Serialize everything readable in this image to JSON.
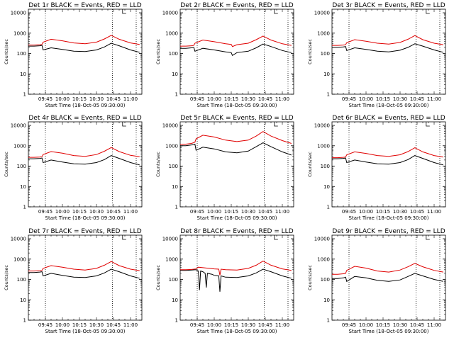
{
  "chart_data": [
    {
      "type": "line",
      "title": "Det 1r BLACK = Events, RED = LLD",
      "xlabel": "Start Time (18-Oct-05 09:30:00)",
      "ylabel": "Counts/sec",
      "yscale": "log",
      "ylim": [
        1,
        15000
      ],
      "xlim": [
        "09:30",
        "11:10"
      ],
      "x_ticks": [
        "09:45",
        "10:00",
        "10:15",
        "10:30",
        "10:45",
        "11:00"
      ],
      "y_ticks": [
        "1",
        "10",
        "100",
        "1000",
        "10000"
      ],
      "vlines": [
        "09:45",
        "10:44",
        "11:05"
      ],
      "grid": false,
      "legend": "none",
      "series": [
        {
          "color": "#000000",
          "x": [
            "09:30",
            "09:35",
            "09:40",
            "09:42",
            "09:43",
            "09:50",
            "10:00",
            "10:10",
            "10:20",
            "10:30",
            "10:37",
            "10:43",
            "10:50",
            "11:00",
            "11:08"
          ],
          "y": [
            230,
            230,
            240,
            250,
            150,
            190,
            160,
            130,
            125,
            150,
            210,
            320,
            240,
            150,
            115
          ]
        },
        {
          "color": "#e00000",
          "x": [
            "09:30",
            "09:35",
            "09:40",
            "09:42",
            "09:43",
            "09:50",
            "10:00",
            "10:10",
            "10:20",
            "10:30",
            "10:37",
            "10:43",
            "10:50",
            "11:00",
            "11:08"
          ],
          "y": [
            260,
            260,
            270,
            280,
            360,
            500,
            420,
            330,
            300,
            360,
            520,
            780,
            500,
            330,
            280
          ]
        }
      ]
    },
    {
      "type": "line",
      "title": "Det 2r BLACK = Events, RED = LLD",
      "xlabel": "Start Time (18-Oct-05 09:30:00)",
      "ylabel": "Counts/sec",
      "yscale": "log",
      "ylim": [
        1,
        15000
      ],
      "xlim": [
        "09:30",
        "11:10"
      ],
      "x_ticks": [
        "09:45",
        "10:00",
        "10:15",
        "10:30",
        "10:45",
        "11:00"
      ],
      "y_ticks": [
        "1",
        "10",
        "100",
        "1000",
        "10000"
      ],
      "vlines": [
        "09:45",
        "10:44",
        "11:05"
      ],
      "grid": false,
      "legend": "none",
      "series": [
        {
          "color": "#000000",
          "x": [
            "09:30",
            "09:35",
            "09:40",
            "09:42",
            "09:43",
            "09:50",
            "10:00",
            "10:10",
            "10:15",
            "10:16",
            "10:20",
            "10:30",
            "10:37",
            "10:43",
            "10:50",
            "11:00",
            "11:08"
          ],
          "y": [
            180,
            180,
            190,
            200,
            130,
            180,
            150,
            120,
            110,
            80,
            110,
            130,
            190,
            290,
            220,
            140,
            110
          ]
        },
        {
          "color": "#e00000",
          "x": [
            "09:30",
            "09:35",
            "09:40",
            "09:42",
            "09:43",
            "09:50",
            "10:00",
            "10:10",
            "10:15",
            "10:16",
            "10:20",
            "10:30",
            "10:37",
            "10:43",
            "10:50",
            "11:00",
            "11:08"
          ],
          "y": [
            230,
            230,
            240,
            250,
            320,
            460,
            380,
            300,
            280,
            220,
            270,
            320,
            480,
            720,
            460,
            300,
            250
          ]
        }
      ]
    },
    {
      "type": "line",
      "title": "Det 3r BLACK = Events, RED = LLD",
      "xlabel": "Start Time (18-Oct-05 09:30:00)",
      "ylabel": "Counts/sec",
      "yscale": "log",
      "ylim": [
        1,
        15000
      ],
      "xlim": [
        "09:30",
        "11:10"
      ],
      "x_ticks": [
        "09:45",
        "10:00",
        "10:15",
        "10:30",
        "10:45",
        "11:00"
      ],
      "y_ticks": [
        "1",
        "10",
        "100",
        "1000",
        "10000"
      ],
      "vlines": [
        "09:45",
        "10:44",
        "11:05"
      ],
      "grid": false,
      "legend": "none",
      "series": [
        {
          "color": "#000000",
          "x": [
            "09:30",
            "09:35",
            "09:40",
            "09:42",
            "09:43",
            "09:50",
            "10:00",
            "10:10",
            "10:20",
            "10:30",
            "10:37",
            "10:43",
            "10:50",
            "11:00",
            "11:08"
          ],
          "y": [
            200,
            200,
            210,
            220,
            140,
            190,
            160,
            130,
            120,
            145,
            200,
            300,
            230,
            150,
            115
          ]
        },
        {
          "color": "#e00000",
          "x": [
            "09:30",
            "09:35",
            "09:40",
            "09:42",
            "09:43",
            "09:50",
            "10:00",
            "10:10",
            "10:20",
            "10:30",
            "10:37",
            "10:43",
            "10:50",
            "11:00",
            "11:08"
          ],
          "y": [
            250,
            250,
            260,
            270,
            340,
            480,
            400,
            320,
            290,
            350,
            500,
            760,
            480,
            320,
            270
          ]
        }
      ]
    },
    {
      "type": "line",
      "title": "Det 4r BLACK = Events, RED = LLD",
      "xlabel": "Start Time (18-Oct-05 09:30:00)",
      "ylabel": "Counts/sec",
      "yscale": "log",
      "ylim": [
        1,
        15000
      ],
      "xlim": [
        "09:30",
        "11:10"
      ],
      "x_ticks": [
        "09:45",
        "10:00",
        "10:15",
        "10:30",
        "10:45",
        "11:00"
      ],
      "y_ticks": [
        "1",
        "10",
        "100",
        "1000",
        "10000"
      ],
      "vlines": [
        "09:45",
        "10:44",
        "11:05"
      ],
      "grid": false,
      "legend": "none",
      "series": [
        {
          "color": "#000000",
          "x": [
            "09:30",
            "09:35",
            "09:40",
            "09:42",
            "09:43",
            "09:50",
            "10:00",
            "10:10",
            "10:20",
            "10:30",
            "10:37",
            "10:43",
            "10:50",
            "11:00",
            "11:08"
          ],
          "y": [
            230,
            230,
            240,
            250,
            150,
            200,
            160,
            130,
            125,
            150,
            210,
            330,
            240,
            150,
            115
          ]
        },
        {
          "color": "#e00000",
          "x": [
            "09:30",
            "09:35",
            "09:40",
            "09:42",
            "09:43",
            "09:50",
            "10:00",
            "10:10",
            "10:20",
            "10:30",
            "10:37",
            "10:43",
            "10:50",
            "11:00",
            "11:08"
          ],
          "y": [
            270,
            270,
            280,
            290,
            370,
            520,
            430,
            330,
            300,
            370,
            540,
            820,
            520,
            340,
            290
          ]
        }
      ]
    },
    {
      "type": "line",
      "title": "Det 5r BLACK = Events, RED = LLD",
      "xlabel": "Start Time (18-Oct-05 09:30:00)",
      "ylabel": "Counts/sec",
      "yscale": "log",
      "ylim": [
        1,
        15000
      ],
      "xlim": [
        "09:30",
        "11:10"
      ],
      "x_ticks": [
        "09:45",
        "10:00",
        "10:15",
        "10:30",
        "10:45",
        "11:00"
      ],
      "y_ticks": [
        "1",
        "10",
        "100",
        "1000",
        "10000"
      ],
      "vlines": [
        "09:45",
        "10:44",
        "11:05"
      ],
      "grid": false,
      "legend": "none",
      "series": [
        {
          "color": "#000000",
          "x": [
            "09:30",
            "09:35",
            "09:40",
            "09:43",
            "09:44",
            "09:50",
            "10:00",
            "10:10",
            "10:20",
            "10:30",
            "10:37",
            "10:43",
            "10:50",
            "11:00",
            "11:08"
          ],
          "y": [
            1000,
            1000,
            1100,
            1200,
            600,
            850,
            700,
            500,
            450,
            550,
            900,
            1400,
            900,
            500,
            350
          ]
        },
        {
          "color": "#e00000",
          "x": [
            "09:30",
            "09:35",
            "09:40",
            "09:43",
            "09:44",
            "09:50",
            "10:00",
            "10:10",
            "10:20",
            "10:30",
            "10:37",
            "10:43",
            "10:50",
            "11:00",
            "11:08"
          ],
          "y": [
            1200,
            1200,
            1300,
            1500,
            2200,
            3300,
            2700,
            1900,
            1600,
            1900,
            3000,
            5000,
            3000,
            1800,
            1300
          ]
        }
      ]
    },
    {
      "type": "line",
      "title": "Det 6r BLACK = Events, RED = LLD",
      "xlabel": "Start Time (18-Oct-05 09:30:00)",
      "ylabel": "Counts/sec",
      "yscale": "log",
      "ylim": [
        1,
        15000
      ],
      "xlim": [
        "09:30",
        "11:10"
      ],
      "x_ticks": [
        "09:45",
        "10:00",
        "10:15",
        "10:30",
        "10:45",
        "11:00"
      ],
      "y_ticks": [
        "1",
        "10",
        "100",
        "1000",
        "10000"
      ],
      "vlines": [
        "09:45",
        "10:44",
        "11:05"
      ],
      "grid": false,
      "legend": "none",
      "series": [
        {
          "color": "#000000",
          "x": [
            "09:30",
            "09:35",
            "09:40",
            "09:42",
            "09:43",
            "09:50",
            "10:00",
            "10:10",
            "10:20",
            "10:30",
            "10:37",
            "10:43",
            "10:50",
            "11:00",
            "11:08"
          ],
          "y": [
            230,
            230,
            240,
            250,
            150,
            200,
            160,
            130,
            125,
            150,
            210,
            330,
            240,
            150,
            115
          ]
        },
        {
          "color": "#e00000",
          "x": [
            "09:30",
            "09:35",
            "09:40",
            "09:42",
            "09:43",
            "09:50",
            "10:00",
            "10:10",
            "10:20",
            "10:30",
            "10:37",
            "10:43",
            "10:50",
            "11:00",
            "11:08"
          ],
          "y": [
            260,
            260,
            270,
            280,
            360,
            500,
            420,
            330,
            300,
            360,
            520,
            800,
            500,
            330,
            280
          ]
        }
      ]
    },
    {
      "type": "line",
      "title": "Det 7r BLACK = Events, RED = LLD",
      "xlabel": "Start Time (18-Oct-05 09:30:00)",
      "ylabel": "Counts/sec",
      "yscale": "log",
      "ylim": [
        1,
        15000
      ],
      "xlim": [
        "09:30",
        "11:10"
      ],
      "x_ticks": [
        "09:45",
        "10:00",
        "10:15",
        "10:30",
        "10:45",
        "11:00"
      ],
      "y_ticks": [
        "1",
        "10",
        "100",
        "1000",
        "10000"
      ],
      "vlines": [
        "09:45",
        "10:44",
        "11:05"
      ],
      "grid": false,
      "legend": "none",
      "series": [
        {
          "color": "#000000",
          "x": [
            "09:30",
            "09:35",
            "09:40",
            "09:42",
            "09:43",
            "09:50",
            "10:00",
            "10:10",
            "10:20",
            "10:30",
            "10:37",
            "10:43",
            "10:50",
            "11:00",
            "11:08"
          ],
          "y": [
            220,
            220,
            230,
            240,
            150,
            200,
            160,
            130,
            125,
            150,
            210,
            320,
            240,
            150,
            115
          ]
        },
        {
          "color": "#e00000",
          "x": [
            "09:30",
            "09:35",
            "09:40",
            "09:42",
            "09:43",
            "09:50",
            "10:00",
            "10:10",
            "10:20",
            "10:30",
            "10:37",
            "10:43",
            "10:50",
            "11:00",
            "11:08"
          ],
          "y": [
            260,
            260,
            270,
            280,
            350,
            480,
            400,
            320,
            290,
            350,
            500,
            760,
            480,
            320,
            270
          ]
        }
      ]
    },
    {
      "type": "line",
      "title": "Det 8r BLACK = Events, RED = LLD",
      "xlabel": "Start Time (18-Oct-05 09:30:00)",
      "ylabel": "Counts/sec",
      "yscale": "log",
      "ylim": [
        1,
        15000
      ],
      "xlim": [
        "09:30",
        "11:10"
      ],
      "x_ticks": [
        "09:45",
        "10:00",
        "10:15",
        "10:30",
        "10:45",
        "11:00"
      ],
      "y_ticks": [
        "1",
        "10",
        "100",
        "1000",
        "10000"
      ],
      "vlines": [
        "09:45",
        "10:44",
        "11:05"
      ],
      "grid": false,
      "legend": "none",
      "series": [
        {
          "color": "#000000",
          "x": [
            "09:30",
            "09:35",
            "09:40",
            "09:44",
            "09:46",
            "09:47",
            "09:48",
            "09:50",
            "09:52",
            "09:53",
            "09:54",
            "09:58",
            "10:00",
            "10:04",
            "10:05",
            "10:06",
            "10:10",
            "10:20",
            "10:30",
            "10:37",
            "10:43",
            "10:50",
            "11:00",
            "11:08"
          ],
          "y": [
            280,
            280,
            290,
            300,
            260,
            30,
            260,
            240,
            200,
            40,
            200,
            180,
            160,
            150,
            25,
            150,
            130,
            125,
            150,
            210,
            320,
            240,
            150,
            115
          ]
        },
        {
          "color": "#e00000",
          "x": [
            "09:30",
            "09:35",
            "09:40",
            "09:44",
            "09:46",
            "09:50",
            "10:00",
            "10:04",
            "10:05",
            "10:06",
            "10:10",
            "10:20",
            "10:30",
            "10:37",
            "10:43",
            "10:50",
            "11:00",
            "11:08"
          ],
          "y": [
            300,
            300,
            310,
            330,
            400,
            380,
            330,
            320,
            160,
            320,
            300,
            290,
            350,
            500,
            800,
            500,
            330,
            280
          ]
        }
      ]
    },
    {
      "type": "line",
      "title": "Det 9r BLACK = Events, RED = LLD",
      "xlabel": "Start Time (18-Oct-05 09:30:00)",
      "ylabel": "Counts/sec",
      "yscale": "log",
      "ylim": [
        1,
        15000
      ],
      "xlim": [
        "09:30",
        "11:10"
      ],
      "x_ticks": [
        "09:45",
        "10:00",
        "10:15",
        "10:30",
        "10:45",
        "11:00"
      ],
      "y_ticks": [
        "1",
        "10",
        "100",
        "1000",
        "10000"
      ],
      "vlines": [
        "09:45",
        "10:44",
        "11:05"
      ],
      "grid": false,
      "legend": "none",
      "series": [
        {
          "color": "#000000",
          "x": [
            "09:30",
            "09:35",
            "09:40",
            "09:42",
            "09:43",
            "09:50",
            "10:00",
            "10:10",
            "10:20",
            "10:30",
            "10:37",
            "10:43",
            "10:50",
            "11:00",
            "11:08"
          ],
          "y": [
            110,
            110,
            120,
            130,
            80,
            140,
            120,
            90,
            80,
            95,
            140,
            200,
            150,
            100,
            80
          ]
        },
        {
          "color": "#e00000",
          "x": [
            "09:30",
            "09:35",
            "09:40",
            "09:42",
            "09:43",
            "09:50",
            "10:00",
            "10:10",
            "10:20",
            "10:30",
            "10:37",
            "10:43",
            "10:50",
            "11:00",
            "11:08"
          ],
          "y": [
            180,
            180,
            190,
            200,
            280,
            440,
            360,
            260,
            230,
            290,
            420,
            620,
            420,
            280,
            230
          ]
        }
      ]
    }
  ]
}
